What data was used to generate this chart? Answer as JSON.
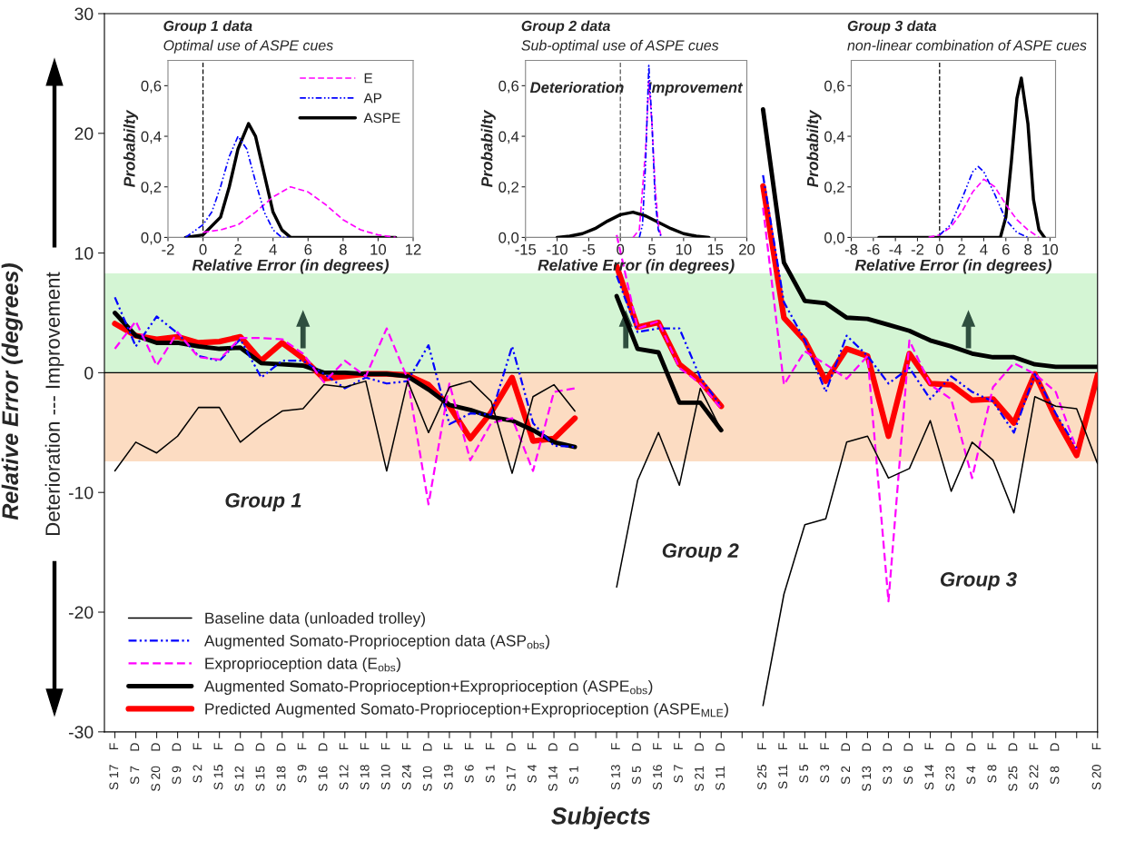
{
  "chart_data": [
    {
      "type": "line",
      "xlabel": "Subjects",
      "ylabel": "Relative Error (degrees)",
      "annotations": [
        "Deterioration --- Improvement",
        "Group 1",
        "Group 2",
        "Group 3"
      ],
      "categories": [
        "S 17 F",
        "S 7 D",
        "S 20 D",
        "S 9 D",
        "S 2 F",
        "S 15 F",
        "S 12 D",
        "S 15 D",
        "S 18 D",
        "S 9 F",
        "S 16 D",
        "S 12 F",
        "S 18 F",
        "S 10 F",
        "S 24 F",
        "S 10 D",
        "S 19 F",
        "S 6 F",
        "S 1 F",
        "S 17 D",
        "S 4 F",
        "S 14 D",
        "S 1 D",
        null,
        "S 13 F",
        "S 5 D",
        "S 16 F",
        "S 7 F",
        "S 21 D",
        "S 11 D",
        null,
        "S 25 F",
        "S 11 F",
        "S 5 F",
        "S 3 F",
        "S 2 D",
        "S 13 D",
        "S 3 D",
        "S 6 D",
        "S 14 F",
        "S 23 D",
        "S 4 D",
        "S 8 F",
        "S 25 D",
        "S 22 F",
        "S 8 D",
        null,
        "S 20 F"
      ],
      "series": [
        {
          "name": "Baseline data (unloaded trolley)",
          "color": "#000000",
          "line_style": "solid",
          "values": [
            -8.2,
            -5.8,
            -6.7,
            -5.3,
            -2.9,
            -2.9,
            -5.8,
            -4.4,
            -3.2,
            -3.0,
            -1.0,
            -1.2,
            -0.7,
            -8.2,
            -0.7,
            -5.0,
            -1.2,
            -0.7,
            -2.4,
            -8.4,
            -2.0,
            -1.0,
            -3.2,
            null,
            -17.9,
            -9.0,
            -5.0,
            -9.4,
            -1.3,
            -4.8,
            null,
            -27.8,
            -18.5,
            -12.7,
            -12.2,
            -5.8,
            -5.3,
            -8.8,
            -8.0,
            -4.0,
            -9.9,
            -5.8,
            -7.3,
            -11.7,
            -2.0,
            -2.8,
            -3.0,
            -7.6
          ]
        },
        {
          "name": "Augmented Somato-Proprioception data (ASP$_{obs}$)",
          "color": "#0000ff",
          "line_style": "dashdot",
          "values": [
            6.3,
            2.2,
            4.7,
            3.3,
            1.4,
            1.0,
            2.8,
            -0.4,
            1.0,
            1.0,
            -0.1,
            -1.3,
            -0.4,
            -0.9,
            -0.7,
            2.3,
            -4.3,
            -3.4,
            -3.5,
            2.2,
            -4.2,
            -6.1,
            -6.2,
            null,
            8.1,
            3.4,
            3.7,
            3.7,
            -0.4,
            -2.8,
            null,
            16.5,
            5.9,
            2.7,
            -1.6,
            3.1,
            1.4,
            -0.9,
            0.4,
            -2.2,
            -0.3,
            -1.6,
            -2.4,
            -5.0,
            -0.1,
            -3.4,
            -6.3,
            null
          ]
        },
        {
          "name": "Exproprioception data (E$_{obs}$)",
          "color": "#ff00ff",
          "line_style": "dashed",
          "values": [
            2.0,
            4.3,
            0.6,
            3.4,
            1.3,
            1.1,
            2.9,
            2.9,
            2.8,
            1.6,
            -0.8,
            1.0,
            -0.3,
            3.7,
            -0.5,
            -11.0,
            -0.9,
            -7.3,
            -4.2,
            -3.8,
            -8.2,
            -1.6,
            -1.3,
            null,
            11.5,
            3.7,
            4.3,
            0.4,
            -0.9,
            -3.0,
            null,
            13.8,
            -1.0,
            1.8,
            0.7,
            -0.5,
            1.4,
            -19.1,
            2.7,
            -1.0,
            -2.2,
            -8.8,
            -1.2,
            0.8,
            -0.1,
            -1.6,
            -6.4,
            null
          ]
        },
        {
          "name": "Augmented Somato-Proprioception+Exproprioception (ASPE$_{obs}$)",
          "color": "#000000",
          "line_style": "solid",
          "values": [
            5.0,
            3.1,
            2.5,
            2.5,
            2.2,
            2.0,
            2.1,
            0.8,
            0.7,
            0.6,
            0.0,
            0.0,
            -0.1,
            -0.1,
            -0.3,
            -1.4,
            -2.7,
            -3.1,
            -3.7,
            -4.0,
            -4.8,
            -5.8,
            -6.2,
            null,
            6.4,
            2.0,
            1.7,
            -2.5,
            -2.5,
            -4.8,
            null,
            22.0,
            9.2,
            6.0,
            5.8,
            4.6,
            4.5,
            4.0,
            3.5,
            2.7,
            2.2,
            1.6,
            1.3,
            1.3,
            0.7,
            0.5,
            0.5,
            0.5
          ]
        },
        {
          "name": "Predicted Augmented Somato-Proprioception+Exproprioception (ASPE$_{MLE}$)",
          "color": "#ff0000",
          "line_style": "solid",
          "values": [
            4.1,
            3.1,
            2.8,
            3.0,
            2.5,
            2.6,
            3.0,
            1.0,
            2.5,
            1.2,
            -0.5,
            -0.3,
            -0.1,
            -0.1,
            -0.2,
            -1.0,
            -2.8,
            -5.5,
            -3.3,
            -0.4,
            -5.7,
            -5.5,
            -3.8,
            null,
            8.9,
            3.8,
            4.2,
            0.7,
            -0.7,
            -2.8,
            null,
            15.6,
            4.6,
            2.7,
            -0.7,
            2.0,
            1.4,
            -5.3,
            1.6,
            -0.9,
            -1.0,
            -2.3,
            -2.2,
            -4.2,
            -0.1,
            -3.8,
            -6.9,
            -0.2
          ]
        }
      ],
      "ylim": [
        -30,
        30
      ],
      "yticks": [
        -30,
        -20,
        -10,
        0,
        10,
        20,
        30
      ],
      "ref_lines": [
        {
          "axis": "y",
          "value": 0,
          "color": "#000000"
        }
      ],
      "bands": [
        {
          "axis": "y",
          "from": 0,
          "to": 8.3,
          "color": "#d4f5d4"
        },
        {
          "axis": "y",
          "from": -7.4,
          "to": 0,
          "color": "#fcdcc2"
        }
      ],
      "grid": false,
      "legend": "bottom left"
    },
    {
      "type": "line",
      "title": "Group 1 data",
      "subtitle": "Optimal use of ASPE cues",
      "xlabel": "Relative Error (in degrees)",
      "ylabel": "Probabilty",
      "series": [
        {
          "name": "E",
          "color": "#ff00ff",
          "line_style": "dashed",
          "x": [
            0,
            1,
            2,
            3,
            4,
            5,
            6,
            7,
            8,
            9,
            10,
            11
          ],
          "values": [
            0.02,
            0.03,
            0.05,
            0.1,
            0.16,
            0.2,
            0.18,
            0.13,
            0.07,
            0.03,
            0.01,
            0.0
          ]
        },
        {
          "name": "AP",
          "color": "#0000ff",
          "line_style": "dashdot",
          "x": [
            -1,
            0,
            0.5,
            1,
            1.5,
            2,
            2.5,
            3,
            3.5,
            4,
            4.5,
            5
          ],
          "values": [
            0.0,
            0.05,
            0.1,
            0.2,
            0.32,
            0.4,
            0.35,
            0.22,
            0.1,
            0.03,
            0.0,
            0.0
          ]
        },
        {
          "name": "ASPE",
          "color": "#000000",
          "line_style": "solid",
          "x": [
            -1,
            0,
            1,
            1.5,
            2,
            2.6,
            3,
            3.5,
            4,
            4.5,
            5,
            11
          ],
          "values": [
            0.0,
            0.01,
            0.08,
            0.2,
            0.35,
            0.45,
            0.4,
            0.25,
            0.1,
            0.03,
            0.0,
            0.0
          ]
        }
      ],
      "xlim": [
        -2,
        12
      ],
      "xticks": [
        -2,
        0,
        2,
        4,
        6,
        8,
        10,
        12
      ],
      "ylim": [
        0,
        0.7
      ],
      "yticks": [
        {
          "value": 0,
          "label": "0,0"
        },
        {
          "value": 0.2,
          "label": "0,2"
        },
        {
          "value": 0.4,
          "label": "0,4"
        },
        {
          "value": 0.6,
          "label": "0,6"
        }
      ],
      "ref_lines": [
        {
          "axis": "x",
          "value": 0,
          "color": "#000000",
          "line_style": "dashed"
        }
      ],
      "legend": "top right"
    },
    {
      "type": "line",
      "title": "Group 2 data",
      "subtitle": "Sub-optimal use of ASPE cues",
      "xlabel": "Relative Error (in degrees)",
      "ylabel": "Probabilty",
      "annotations": [
        "Deterioration",
        "Improvement"
      ],
      "series": [
        {
          "color": "#ff00ff",
          "line_style": "dashed",
          "x": [
            2,
            3,
            4,
            4.5,
            5,
            5.5,
            6,
            6.5
          ],
          "values": [
            0.0,
            0.03,
            0.35,
            0.62,
            0.45,
            0.2,
            0.05,
            0.0
          ]
        },
        {
          "color": "#0000ff",
          "line_style": "dashdot",
          "x": [
            3,
            3.5,
            4,
            4.5,
            5,
            5.5,
            6,
            6.5
          ],
          "values": [
            0.0,
            0.05,
            0.3,
            0.68,
            0.45,
            0.15,
            0.03,
            0.0
          ]
        },
        {
          "color": "#000000",
          "line_style": "solid",
          "x": [
            -10,
            -8,
            -6,
            -4,
            -2,
            0,
            2,
            4,
            6,
            8,
            10,
            12,
            14
          ],
          "values": [
            0.0,
            0.005,
            0.015,
            0.035,
            0.065,
            0.09,
            0.1,
            0.085,
            0.06,
            0.035,
            0.015,
            0.005,
            0.0
          ]
        }
      ],
      "xlim": [
        -15,
        20
      ],
      "xticks": [
        -15,
        -10,
        -5,
        0,
        5,
        10,
        15,
        20
      ],
      "ylim": [
        0,
        0.7
      ],
      "yticks": [
        {
          "value": 0,
          "label": "0,0"
        },
        {
          "value": 0.2,
          "label": "0,2"
        },
        {
          "value": 0.4,
          "label": "0,4"
        },
        {
          "value": 0.6,
          "label": "0,6"
        }
      ],
      "ref_lines": [
        {
          "axis": "x",
          "value": 0,
          "color": "#555555",
          "line_style": "dashed"
        }
      ]
    },
    {
      "type": "line",
      "title": "Group 3 data",
      "subtitle": "non-linear combination of ASPE cues",
      "xlabel": "Relative Error (in degrees)",
      "ylabel": "Probabilty",
      "series": [
        {
          "color": "#ff00ff",
          "line_style": "dashed",
          "x": [
            -1,
            0,
            1,
            2,
            3,
            4,
            5,
            6,
            7,
            8,
            9
          ],
          "values": [
            0.0,
            0.01,
            0.04,
            0.1,
            0.18,
            0.23,
            0.2,
            0.13,
            0.07,
            0.03,
            0.0
          ]
        },
        {
          "color": "#0000ff",
          "line_style": "dashdot",
          "x": [
            0,
            1,
            2,
            3,
            3.5,
            4,
            5,
            6,
            7,
            8
          ],
          "values": [
            0.01,
            0.05,
            0.15,
            0.26,
            0.28,
            0.26,
            0.17,
            0.07,
            0.02,
            0.0
          ]
        },
        {
          "color": "#000000",
          "line_style": "solid",
          "x": [
            -5.5,
            5.5,
            6,
            6.5,
            7,
            7.4,
            8,
            8.5,
            9,
            9.5
          ],
          "values": [
            0.0,
            0.0,
            0.08,
            0.3,
            0.55,
            0.63,
            0.45,
            0.15,
            0.03,
            0.0
          ]
        }
      ],
      "xlim": [
        -8,
        10.5
      ],
      "xticks": [
        -8,
        -6,
        -4,
        -2,
        0,
        2,
        4,
        6,
        8,
        10
      ],
      "ylim": [
        0,
        0.7
      ],
      "yticks": [
        {
          "value": 0,
          "label": "0,0"
        },
        {
          "value": 0.2,
          "label": "0,2"
        },
        {
          "value": 0.4,
          "label": "0,4"
        },
        {
          "value": 0.6,
          "label": "0,6"
        }
      ],
      "ref_lines": [
        {
          "axis": "x",
          "value": 0,
          "color": "#000000",
          "line_style": "dashed"
        }
      ]
    }
  ]
}
